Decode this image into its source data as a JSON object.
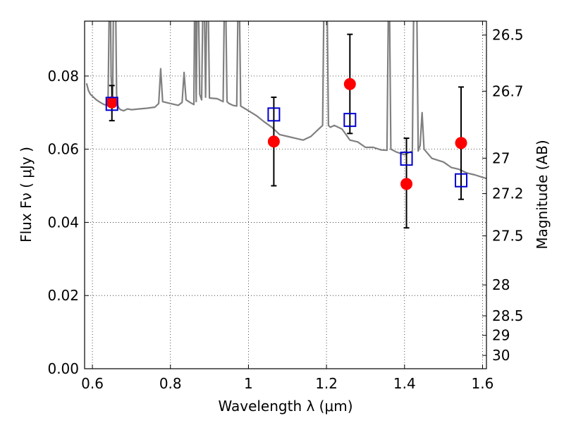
{
  "chart_data": {
    "type": "scatter",
    "xlabel": "Wavelength  λ (μm)",
    "ylabel": "Flux  Fν  ( μJy )",
    "ylabel_right": "Magnitude (AB)",
    "xlim": [
      0.58,
      1.61
    ],
    "ylim": [
      0.0,
      0.095
    ],
    "grid": true,
    "x_ticks": [
      {
        "value": 0.6,
        "label": "0.6"
      },
      {
        "value": 0.8,
        "label": "0.8"
      },
      {
        "value": 1.0,
        "label": "1"
      },
      {
        "value": 1.2,
        "label": "1.2"
      },
      {
        "value": 1.4,
        "label": "1.4"
      },
      {
        "value": 1.6,
        "label": "1.6"
      }
    ],
    "y_ticks": [
      {
        "value": 0.0,
        "label": "0.00"
      },
      {
        "value": 0.02,
        "label": "0.02"
      },
      {
        "value": 0.04,
        "label": "0.04"
      },
      {
        "value": 0.06,
        "label": "0.06"
      },
      {
        "value": 0.08,
        "label": "0.08"
      }
    ],
    "mag_ticks": [
      {
        "value": 26.5,
        "label": "26.5"
      },
      {
        "value": 26.7,
        "label": "26.7"
      },
      {
        "value": 27.0,
        "label": "27"
      },
      {
        "value": 27.2,
        "label": "27.2"
      },
      {
        "value": 27.5,
        "label": "27.5"
      },
      {
        "value": 28.0,
        "label": "28"
      },
      {
        "value": 28.5,
        "label": "28.5"
      },
      {
        "value": 29.0,
        "label": "29"
      },
      {
        "value": 30.0,
        "label": "30"
      }
    ],
    "colors": {
      "spectrum": "#808080",
      "observed": "#ff0000",
      "model": "#0000cc",
      "errorbar": "#000000"
    },
    "spectrum": {
      "x": [
        0.585,
        0.59,
        0.595,
        0.6,
        0.61,
        0.62,
        0.63,
        0.64,
        0.645,
        0.648,
        0.652,
        0.655,
        0.658,
        0.662,
        0.665,
        0.668,
        0.672,
        0.68,
        0.69,
        0.7,
        0.72,
        0.74,
        0.76,
        0.77,
        0.775,
        0.78,
        0.8,
        0.82,
        0.83,
        0.835,
        0.84,
        0.85,
        0.86,
        0.863,
        0.866,
        0.87,
        0.875,
        0.88,
        0.885,
        0.89,
        0.895,
        0.9,
        0.92,
        0.935,
        0.94,
        0.945,
        0.95,
        0.96,
        0.97,
        0.975,
        0.98,
        1.0,
        1.02,
        1.04,
        1.06,
        1.08,
        1.1,
        1.12,
        1.14,
        1.16,
        1.18,
        1.19,
        1.195,
        1.2,
        1.205,
        1.21,
        1.22,
        1.23,
        1.24,
        1.25,
        1.26,
        1.28,
        1.3,
        1.32,
        1.34,
        1.355,
        1.36,
        1.365,
        1.38,
        1.4,
        1.41,
        1.42,
        1.425,
        1.43,
        1.435,
        1.44,
        1.445,
        1.45,
        1.47,
        1.5,
        1.52,
        1.54,
        1.56,
        1.58,
        1.6,
        1.61
      ],
      "y": [
        0.078,
        0.076,
        0.075,
        0.0745,
        0.0735,
        0.0728,
        0.0722,
        0.072,
        0.095,
        0.08,
        0.0725,
        0.095,
        0.095,
        0.075,
        0.072,
        0.0712,
        0.0708,
        0.0705,
        0.071,
        0.0708,
        0.071,
        0.0712,
        0.0715,
        0.0725,
        0.082,
        0.073,
        0.0725,
        0.072,
        0.0728,
        0.081,
        0.0735,
        0.0728,
        0.0722,
        0.095,
        0.073,
        0.095,
        0.075,
        0.0735,
        0.095,
        0.0742,
        0.095,
        0.074,
        0.0738,
        0.073,
        0.095,
        0.073,
        0.0725,
        0.072,
        0.0718,
        0.095,
        0.0718,
        0.0705,
        0.0692,
        0.0675,
        0.066,
        0.064,
        0.0635,
        0.063,
        0.0625,
        0.0635,
        0.0655,
        0.0665,
        0.095,
        0.095,
        0.0665,
        0.066,
        0.0665,
        0.066,
        0.0655,
        0.064,
        0.0625,
        0.062,
        0.0605,
        0.0605,
        0.0598,
        0.0597,
        0.095,
        0.06,
        0.0592,
        0.0585,
        0.059,
        0.0595,
        0.095,
        0.095,
        0.0595,
        0.061,
        0.07,
        0.06,
        0.0575,
        0.0565,
        0.055,
        0.0545,
        0.0535,
        0.053,
        0.0523,
        0.052
      ]
    },
    "observed": {
      "x": [
        0.65,
        1.065,
        1.26,
        1.405,
        1.545
      ],
      "y": [
        0.0728,
        0.0621,
        0.0778,
        0.0505,
        0.0617
      ],
      "yerr_low": [
        0.0678,
        0.05,
        0.0643,
        0.0385,
        0.0463
      ],
      "yerr_high": [
        0.0774,
        0.0742,
        0.0914,
        0.063,
        0.077
      ]
    },
    "model": {
      "x": [
        0.65,
        1.065,
        1.26,
        1.405,
        1.545
      ],
      "y": [
        0.0724,
        0.0695,
        0.068,
        0.0574,
        0.0515
      ]
    }
  }
}
